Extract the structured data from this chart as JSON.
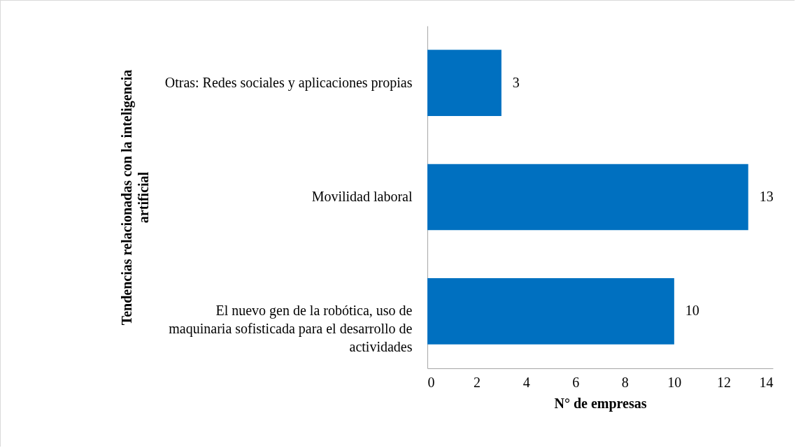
{
  "chart_data": {
    "type": "bar",
    "orientation": "horizontal",
    "categories": [
      "Otras: Redes sociales y aplicaciones propias",
      "Movilidad laboral",
      "El nuevo gen de la robótica, uso de maquinaria sofisticada para el desarrollo de actividades"
    ],
    "values": [
      3,
      13,
      10
    ],
    "color": "#0070c0",
    "xlabel": "N° de empresas",
    "ylabel": "Tendencias relacionadas con la inteligencia artificial",
    "xlim": [
      0,
      14
    ],
    "xticks": [
      0,
      2,
      4,
      6,
      8,
      10,
      12,
      14
    ],
    "grid": false,
    "data_labels": true
  }
}
